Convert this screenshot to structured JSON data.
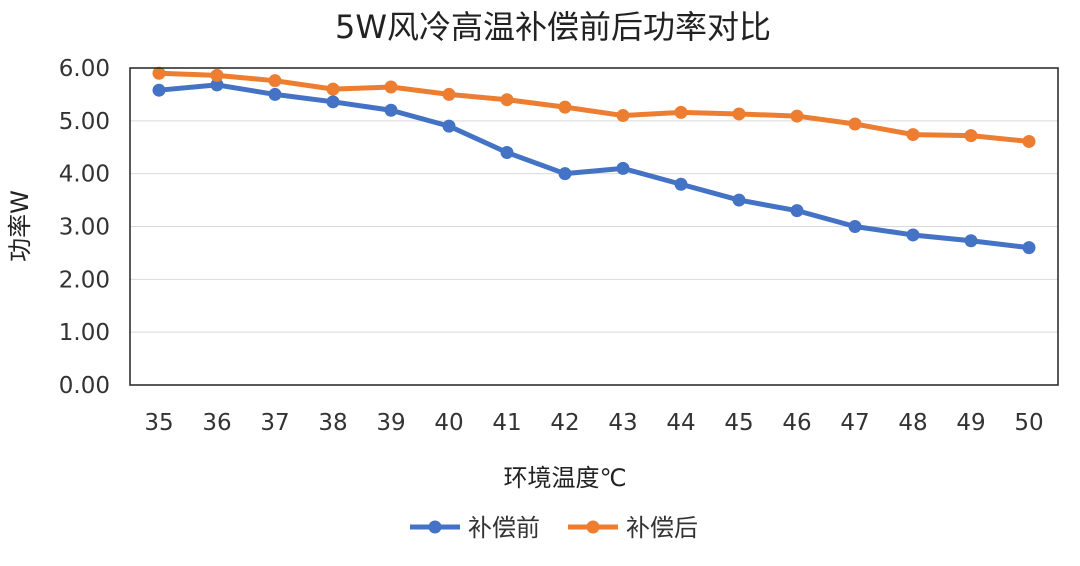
{
  "chart_data": {
    "type": "line",
    "title": "5W风冷高温补偿前后功率对比",
    "xlabel": "环境温度℃",
    "ylabel": "功率W",
    "categories": [
      "35",
      "36",
      "37",
      "38",
      "39",
      "40",
      "41",
      "42",
      "43",
      "44",
      "45",
      "46",
      "47",
      "48",
      "49",
      "50"
    ],
    "series": [
      {
        "name": "补偿前",
        "color": "#4472C4",
        "values": [
          5.58,
          5.68,
          5.5,
          5.36,
          5.2,
          4.9,
          4.4,
          4.0,
          4.1,
          3.8,
          3.5,
          3.3,
          3.0,
          2.84,
          2.73,
          2.6
        ]
      },
      {
        "name": "补偿后",
        "color": "#ED7D31",
        "values": [
          5.9,
          5.86,
          5.76,
          5.6,
          5.64,
          5.5,
          5.4,
          5.26,
          5.1,
          5.16,
          5.13,
          5.09,
          4.94,
          4.74,
          4.72,
          4.61
        ]
      }
    ],
    "ylim": [
      0,
      6
    ],
    "yticks": [
      "0.00",
      "1.00",
      "2.00",
      "3.00",
      "4.00",
      "5.00",
      "6.00"
    ],
    "grid": true,
    "legend_position": "bottom"
  }
}
